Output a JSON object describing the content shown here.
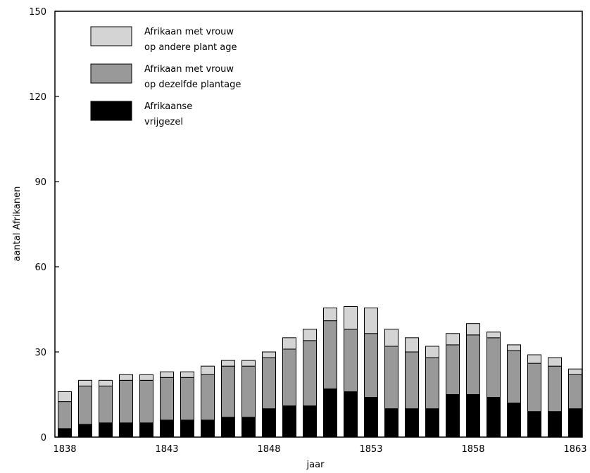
{
  "chart_data": {
    "type": "bar",
    "stacked": true,
    "x": [
      1838,
      1839,
      1840,
      1841,
      1842,
      1843,
      1844,
      1845,
      1846,
      1847,
      1848,
      1849,
      1850,
      1851,
      1852,
      1853,
      1854,
      1855,
      1856,
      1857,
      1858,
      1859,
      1860,
      1861,
      1862,
      1863
    ],
    "series": [
      {
        "name": "Afrikaanse vrijgezel",
        "color": "#000000",
        "values": [
          3,
          4.5,
          5,
          5,
          5,
          6,
          6,
          6,
          7,
          7,
          10,
          11,
          11,
          17,
          16,
          14,
          10,
          10,
          10,
          15,
          15,
          14,
          12,
          9,
          9,
          10
        ]
      },
      {
        "name": "Afrikaan met vrouw op dezelfde plantage",
        "color": "#999999",
        "values": [
          9.5,
          13.5,
          13,
          15,
          15,
          15,
          15,
          16,
          18,
          18,
          18,
          20,
          23,
          24,
          22,
          22.5,
          22,
          20,
          18,
          17.5,
          21,
          21,
          18.5,
          17,
          16,
          12
        ]
      },
      {
        "name": "Afrikaan met vrouw op andere plant age",
        "color": "#d4d4d4",
        "values": [
          3.5,
          2,
          2,
          2,
          2,
          2,
          2,
          3,
          2,
          2,
          2,
          4,
          4,
          4.5,
          8,
          9,
          6,
          5,
          4,
          4,
          4,
          2,
          2,
          3,
          3,
          2
        ]
      }
    ],
    "legend_lines": [
      [
        "Afrikaan met vrouw",
        "op andere plant age"
      ],
      [
        "Afrikaan met vrouw",
        "op dezelfde plantage"
      ],
      [
        "Afrikaanse",
        "vrijgezel"
      ]
    ],
    "legend_placement": "top-left",
    "xlabel": "jaar",
    "ylabel": "aantal Afrikanen",
    "ylim": [
      0,
      150
    ],
    "yticks": [
      0,
      30,
      60,
      90,
      120,
      150
    ],
    "yticklabels": [
      "0",
      "30",
      "60",
      "90",
      "120",
      "150"
    ],
    "xticks": [
      1838,
      1843,
      1848,
      1853,
      1858,
      1863
    ],
    "xticklabels": [
      "1838",
      "1843",
      "1848",
      "1853",
      "1858",
      "1863"
    ],
    "grid": false
  }
}
